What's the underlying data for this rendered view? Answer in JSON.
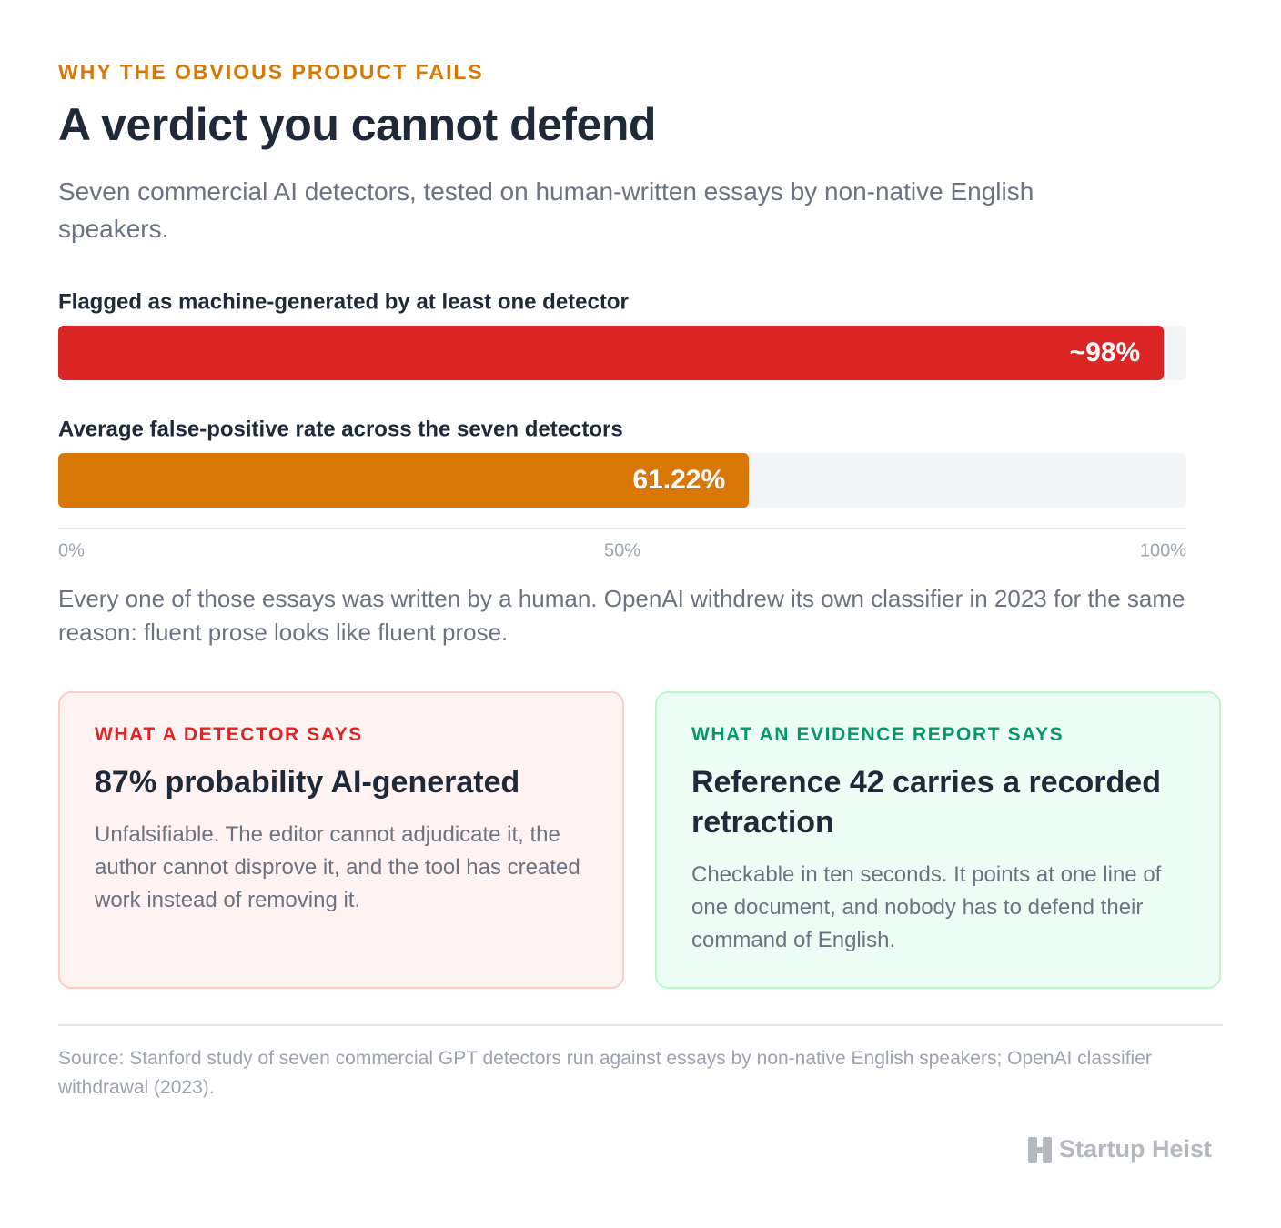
{
  "header": {
    "eyebrow": "WHY THE OBVIOUS PRODUCT FAILS",
    "title": "A verdict you cannot defend",
    "subtitle": "Seven commercial AI detectors, tested on human-written essays by non-native English speakers."
  },
  "chart_data": {
    "type": "bar",
    "orientation": "horizontal",
    "categories": [
      "Flagged as machine-generated by at least one detector",
      "Average false-positive rate across the seven detectors"
    ],
    "values": [
      98,
      61.22
    ],
    "value_labels": [
      "~98%",
      "61.22%"
    ],
    "colors": [
      "#dc2626",
      "#d97706"
    ],
    "xlim": [
      0,
      100
    ],
    "xticks": [
      {
        "value": 0,
        "label": "0%"
      },
      {
        "value": 50,
        "label": "50%"
      },
      {
        "value": 100,
        "label": "100%"
      }
    ]
  },
  "note": "Every one of those essays was written by a human. OpenAI withdrew its own classifier in 2023 for the same reason: fluent prose looks like fluent prose.",
  "cards": [
    {
      "kicker": "WHAT A DETECTOR SAYS",
      "heading": "87% probability AI-generated",
      "body": "Unfalsifiable. The editor cannot adjudicate it, the author cannot disprove it, and the tool has created work instead of removing it."
    },
    {
      "kicker": "WHAT AN EVIDENCE REPORT SAYS",
      "heading": "Reference 42 carries a recorded retraction",
      "body": "Checkable in ten seconds. It points at one line of one document, and nobody has to defend their command of English."
    }
  ],
  "source": "Source: Stanford study of seven commercial GPT detectors run against essays by non-native English speakers; OpenAI classifier withdrawal (2023).",
  "brand": "Startup Heist"
}
